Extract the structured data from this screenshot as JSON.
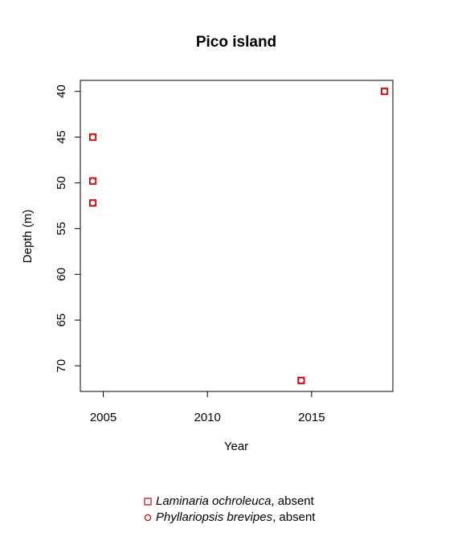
{
  "chart_data": {
    "type": "scatter",
    "title": "Pico island",
    "xlabel": "Year",
    "ylabel": "Depth (m)",
    "xlim": [
      2003.9,
      2018.9
    ],
    "ylim": [
      72.8,
      38.8
    ],
    "y_reversed": true,
    "x_ticks": [
      2005,
      2010,
      2015
    ],
    "x_tick_labels": [
      "2005",
      "2010",
      "2015"
    ],
    "y_ticks": [
      40,
      45,
      50,
      55,
      60,
      65,
      70
    ],
    "y_tick_labels": [
      "40",
      "45",
      "50",
      "55",
      "60",
      "65",
      "70"
    ],
    "grid": false,
    "legend_position": "bottom-center",
    "series": [
      {
        "marker": "square",
        "color": "#cc0000",
        "points": [
          {
            "x": 2004.5,
            "y": 45.0
          },
          {
            "x": 2004.5,
            "y": 49.8
          },
          {
            "x": 2004.5,
            "y": 52.2
          },
          {
            "x": 2014.5,
            "y": 71.6
          },
          {
            "x": 2018.5,
            "y": 40.0
          }
        ]
      },
      {
        "marker": "circle",
        "color": "#cc0000",
        "points": [
          {
            "x": 2004.5,
            "y": 45.0
          },
          {
            "x": 2004.5,
            "y": 49.8
          },
          {
            "x": 2004.5,
            "y": 52.2
          },
          {
            "x": 2014.5,
            "y": 71.6
          },
          {
            "x": 2018.5,
            "y": 40.0
          }
        ]
      }
    ],
    "legend": [
      {
        "italic": "Laminaria ochroleuca",
        "suffix": ", absent",
        "marker": "square"
      },
      {
        "italic": "Phyllariopsis brevipes",
        "suffix": ", absent",
        "marker": "circle"
      }
    ]
  }
}
